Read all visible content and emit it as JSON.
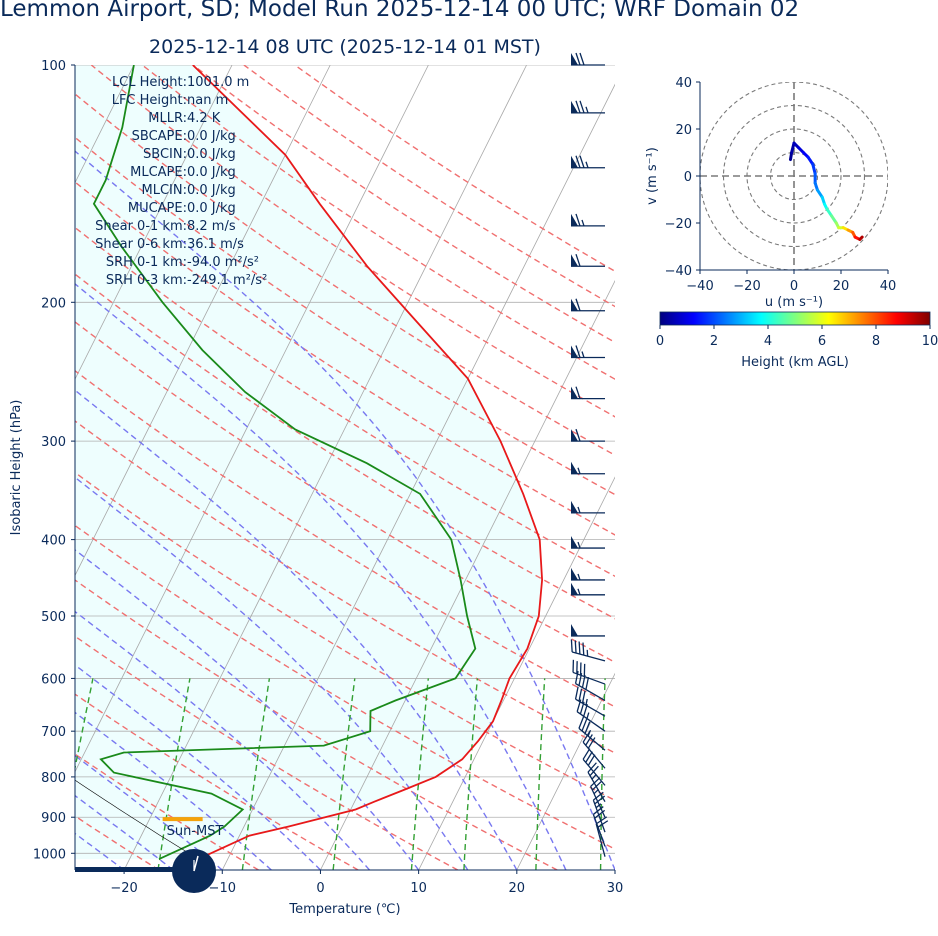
{
  "title": "Lemmon Airport, SD; Model Run 2025-12-14 00 UTC; WRF Domain 02",
  "subtitle": "2025-12-14 08 UTC  (2025-12-14 01 MST)",
  "stats": [
    "LCL Height: 1001.0 m",
    "LFC Height: nan m",
    "MLLR: 4.2 K",
    "SBCAPE: 0.0 J/kg",
    "SBCIN: 0.0 J/kg",
    "MLCAPE: 0.0 J/kg",
    "MLCIN: 0.0 J/kg",
    "MUCAPE: 0.0 J/kg",
    "Shear 0-1 km: 8.2 m/s",
    "Shear 0-6 km: 36.1 m/s",
    "SRH 0-1 km: -94.0 m²/s²",
    "SRH 0-3 km: -249.1 m²/s²"
  ],
  "sun_label": "Sun-MST",
  "colors": {
    "temperature": "#e8191a",
    "dewpoint": "#1a8a1a",
    "dry_adiabat": "#f07070",
    "moist_adiabat": "#7878f0",
    "mixing_ratio": "#33a033",
    "cape_fill": "#eefefe",
    "text": "#0a2a5a",
    "sun_bar": "#f5a30a"
  },
  "chart_data": [
    {
      "type": "skew-t",
      "xlabel": "Temperature (℃)",
      "ylabel": "Isobaric Height (hPa)",
      "xlim": [
        -25,
        30
      ],
      "ylim_hpa": [
        1050,
        100
      ],
      "x_ticks": [
        -20,
        -10,
        0,
        10,
        20,
        30
      ],
      "y_ticks": [
        100,
        200,
        300,
        400,
        500,
        600,
        700,
        800,
        900,
        1000
      ],
      "series": [
        {
          "key": "temperature",
          "points": [
            [
              1017,
              -13.0
            ],
            [
              950,
              -9.0
            ],
            [
              925,
              -5.5
            ],
            [
              880,
              0.5
            ],
            [
              860,
              2.0
            ],
            [
              830,
              4.5
            ],
            [
              800,
              7.0
            ],
            [
              760,
              8.8
            ],
            [
              720,
              9.5
            ],
            [
              680,
              10.0
            ],
            [
              640,
              9.8
            ],
            [
              600,
              9.5
            ],
            [
              550,
              9.8
            ],
            [
              500,
              9.3
            ],
            [
              450,
              7.8
            ],
            [
              400,
              5.5
            ],
            [
              350,
              1.5
            ],
            [
              300,
              -3.5
            ],
            [
              250,
              -10.0
            ],
            [
              210,
              -18.5
            ],
            [
              180,
              -26.0
            ],
            [
              150,
              -34.0
            ],
            [
              130,
              -40.0
            ],
            [
              100,
              -54.0
            ]
          ]
        },
        {
          "key": "dewpoint",
          "points": [
            [
              1017,
              -17.0
            ],
            [
              950,
              -13.0
            ],
            [
              925,
              -12.0
            ],
            [
              880,
              -11.0
            ],
            [
              840,
              -15.0
            ],
            [
              790,
              -26.0
            ],
            [
              760,
              -28.0
            ],
            [
              745,
              -26.0
            ],
            [
              730,
              -6.0
            ],
            [
              700,
              -2.0
            ],
            [
              660,
              -3.0
            ],
            [
              640,
              -1.0
            ],
            [
              600,
              4.0
            ],
            [
              550,
              4.5
            ],
            [
              500,
              2.0
            ],
            [
              450,
              -0.5
            ],
            [
              400,
              -3.5
            ],
            [
              350,
              -9.0
            ],
            [
              320,
              -16.0
            ],
            [
              290,
              -25.0
            ],
            [
              260,
              -32.0
            ],
            [
              230,
              -38.5
            ],
            [
              200,
              -45.0
            ],
            [
              170,
              -52.0
            ],
            [
              150,
              -57.0
            ],
            [
              140,
              -57.0
            ],
            [
              120,
              -58.0
            ],
            [
              100,
              -60.0
            ]
          ]
        }
      ],
      "wind_barbs": [
        {
          "p": 100,
          "speed_kt": 70,
          "dir": 270
        },
        {
          "p": 115,
          "speed_kt": 75,
          "dir": 270
        },
        {
          "p": 135,
          "speed_kt": 75,
          "dir": 270
        },
        {
          "p": 160,
          "speed_kt": 65,
          "dir": 270
        },
        {
          "p": 180,
          "speed_kt": 60,
          "dir": 270
        },
        {
          "p": 205,
          "speed_kt": 60,
          "dir": 270
        },
        {
          "p": 235,
          "speed_kt": 65,
          "dir": 270
        },
        {
          "p": 265,
          "speed_kt": 60,
          "dir": 270
        },
        {
          "p": 300,
          "speed_kt": 60,
          "dir": 270
        },
        {
          "p": 330,
          "speed_kt": 55,
          "dir": 270
        },
        {
          "p": 370,
          "speed_kt": 55,
          "dir": 270
        },
        {
          "p": 410,
          "speed_kt": 55,
          "dir": 270
        },
        {
          "p": 450,
          "speed_kt": 55,
          "dir": 270
        },
        {
          "p": 470,
          "speed_kt": 55,
          "dir": 270
        },
        {
          "p": 530,
          "speed_kt": 50,
          "dir": 270
        },
        {
          "p": 570,
          "speed_kt": 45,
          "dir": 285
        },
        {
          "p": 610,
          "speed_kt": 40,
          "dir": 290
        },
        {
          "p": 640,
          "speed_kt": 40,
          "dir": 300
        },
        {
          "p": 670,
          "speed_kt": 35,
          "dir": 300
        },
        {
          "p": 700,
          "speed_kt": 35,
          "dir": 305
        },
        {
          "p": 740,
          "speed_kt": 35,
          "dir": 310
        },
        {
          "p": 780,
          "speed_kt": 30,
          "dir": 320
        },
        {
          "p": 820,
          "speed_kt": 30,
          "dir": 320
        },
        {
          "p": 860,
          "speed_kt": 25,
          "dir": 330
        },
        {
          "p": 900,
          "speed_kt": 25,
          "dir": 335
        },
        {
          "p": 940,
          "speed_kt": 25,
          "dir": 340
        },
        {
          "p": 980,
          "speed_kt": 20,
          "dir": 340
        },
        {
          "p": 1010,
          "speed_kt": 20,
          "dir": 345
        }
      ],
      "sun_time_bar_value": -12.0
    },
    {
      "type": "hodograph",
      "xlabel": "u (m s⁻¹)",
      "ylabel": "v (m s⁻¹)",
      "xlim": [
        -40,
        40
      ],
      "ylim": [
        -40,
        40
      ],
      "ticks": [
        -40,
        -20,
        0,
        20,
        40
      ],
      "rings": [
        10,
        20,
        30,
        40
      ],
      "colorbar": {
        "label": "Height (km AGL)",
        "range": [
          0,
          10
        ],
        "ticks": [
          0,
          2,
          4,
          6,
          8,
          10
        ],
        "colormap": "jet"
      },
      "points": [
        {
          "u": -1.5,
          "v": 7,
          "h": 0.0
        },
        {
          "u": -1.0,
          "v": 10,
          "h": 0.2
        },
        {
          "u": 0,
          "v": 14,
          "h": 0.4
        },
        {
          "u": 2,
          "v": 12,
          "h": 0.6
        },
        {
          "u": 4,
          "v": 10,
          "h": 0.9
        },
        {
          "u": 6,
          "v": 8,
          "h": 1.2
        },
        {
          "u": 8,
          "v": 5,
          "h": 1.5
        },
        {
          "u": 9,
          "v": 1,
          "h": 1.8
        },
        {
          "u": 9,
          "v": -3,
          "h": 2.1
        },
        {
          "u": 10,
          "v": -6,
          "h": 2.4
        },
        {
          "u": 12,
          "v": -9,
          "h": 2.8
        },
        {
          "u": 13,
          "v": -12,
          "h": 3.3
        },
        {
          "u": 14,
          "v": -14,
          "h": 3.8
        },
        {
          "u": 16,
          "v": -17,
          "h": 4.3
        },
        {
          "u": 18,
          "v": -20,
          "h": 4.8
        },
        {
          "u": 19,
          "v": -22,
          "h": 5.3
        },
        {
          "u": 21,
          "v": -22,
          "h": 5.8
        },
        {
          "u": 23,
          "v": -23,
          "h": 6.5
        },
        {
          "u": 25,
          "v": -24,
          "h": 7.2
        },
        {
          "u": 26,
          "v": -26,
          "h": 7.9
        },
        {
          "u": 28,
          "v": -27,
          "h": 8.6
        },
        {
          "u": 29,
          "v": -26,
          "h": 9.5
        }
      ]
    }
  ]
}
